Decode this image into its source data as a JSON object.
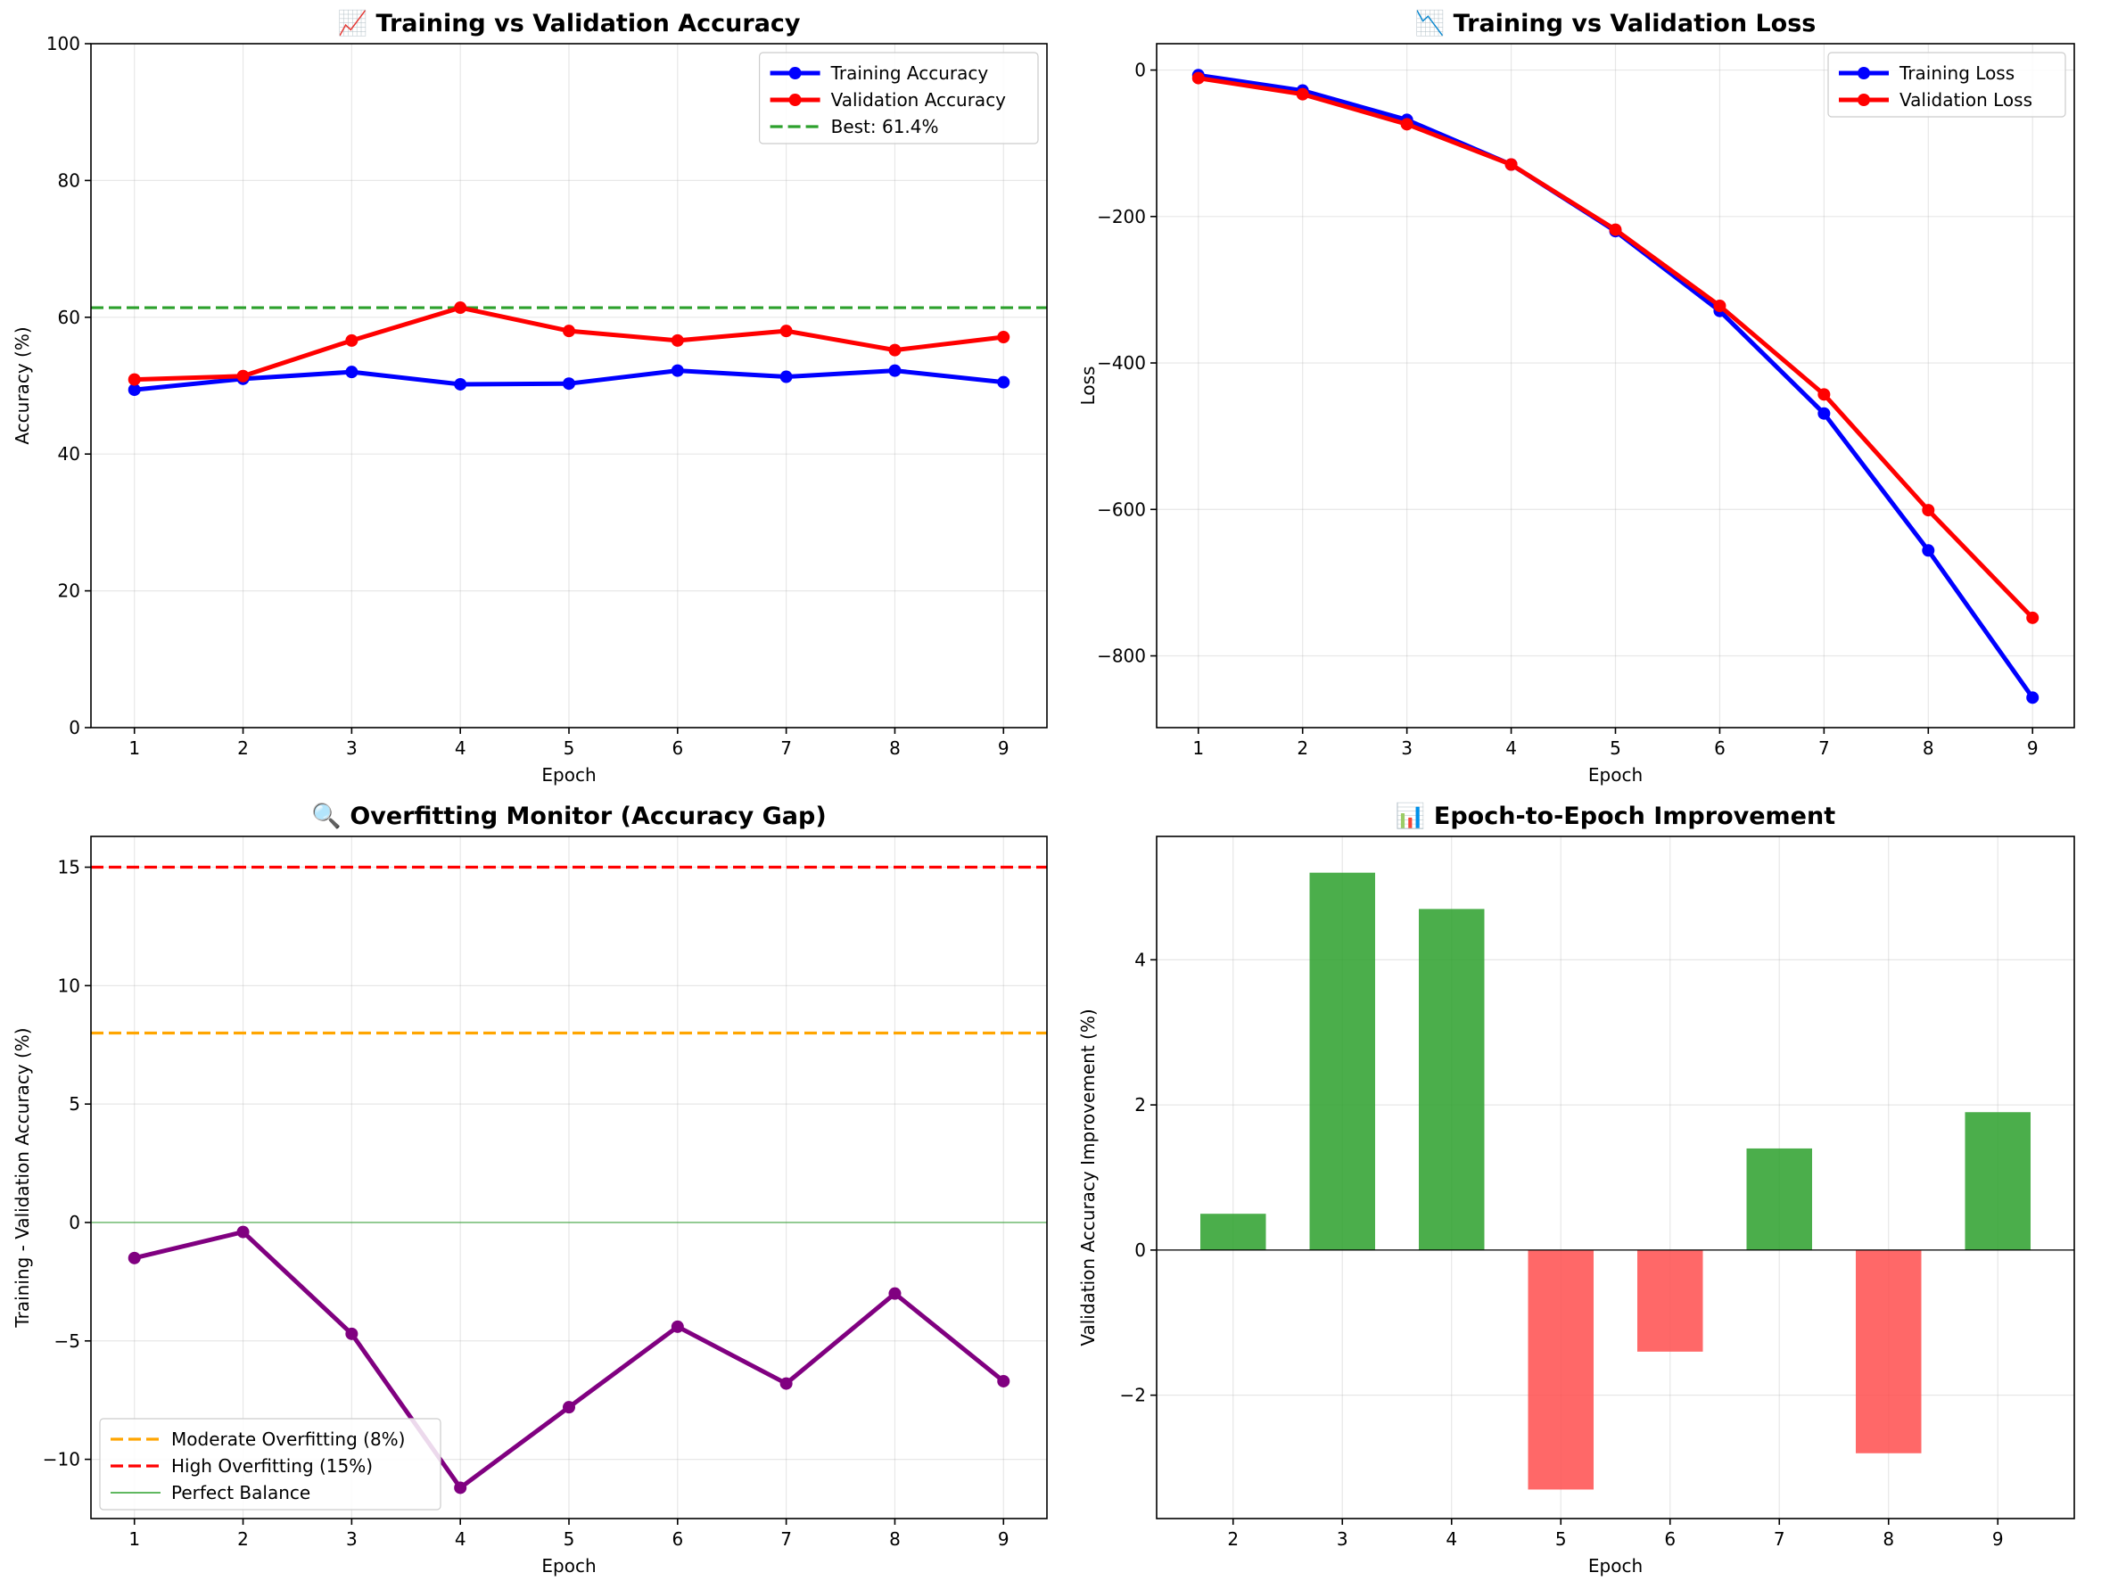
{
  "chart_data": [
    {
      "id": "acc",
      "type": "line",
      "title": "📈 Training vs Validation Accuracy",
      "xlabel": "Epoch",
      "ylabel": "Accuracy (%)",
      "xlim": [
        0.6,
        9.4
      ],
      "ylim": [
        0,
        100
      ],
      "xticks": [
        1,
        2,
        3,
        4,
        5,
        6,
        7,
        8,
        9
      ],
      "yticks": [
        0,
        20,
        40,
        60,
        80,
        100
      ],
      "grid": true,
      "legend_position": "top-right",
      "x": [
        1,
        2,
        3,
        4,
        5,
        6,
        7,
        8,
        9
      ],
      "series": [
        {
          "name": "Training Accuracy",
          "color": "#0000ff",
          "marker": true,
          "values": [
            49.4,
            51.0,
            52.0,
            50.2,
            50.3,
            52.2,
            51.3,
            52.2,
            50.5
          ]
        },
        {
          "name": "Validation Accuracy",
          "color": "#ff0000",
          "marker": true,
          "values": [
            50.9,
            51.4,
            56.6,
            61.4,
            58.0,
            56.6,
            58.0,
            55.2,
            57.1
          ]
        }
      ],
      "hlines": [
        {
          "name": "Best: 61.4%",
          "y": 61.4,
          "color": "#2ca02c",
          "dash": true,
          "in_legend": true
        }
      ]
    },
    {
      "id": "loss",
      "type": "line",
      "title": "📉 Training vs Validation Loss",
      "xlabel": "Epoch",
      "ylabel": "Loss",
      "xlim": [
        0.6,
        9.4
      ],
      "ylim": [
        -898,
        36
      ],
      "xticks": [
        1,
        2,
        3,
        4,
        5,
        6,
        7,
        8,
        9
      ],
      "yticks": [
        -800,
        -600,
        -400,
        -200,
        0
      ],
      "grid": true,
      "legend_position": "top-right",
      "x": [
        1,
        2,
        3,
        4,
        5,
        6,
        7,
        8,
        9
      ],
      "series": [
        {
          "name": "Training Loss",
          "color": "#0000ff",
          "marker": true,
          "values": [
            -7,
            -28,
            -68,
            -129,
            -220,
            -329,
            -469,
            -656,
            -857
          ]
        },
        {
          "name": "Validation Loss",
          "color": "#ff0000",
          "marker": true,
          "values": [
            -11,
            -33,
            -74,
            -129,
            -218,
            -322,
            -443,
            -601,
            -748
          ]
        }
      ],
      "hlines": []
    },
    {
      "id": "gap",
      "type": "line",
      "title": "🔍 Overfitting Monitor (Accuracy Gap)",
      "xlabel": "Epoch",
      "ylabel": "Training - Validation Accuracy (%)",
      "xlim": [
        0.6,
        9.4
      ],
      "ylim": [
        -12.5,
        16.3
      ],
      "xticks": [
        1,
        2,
        3,
        4,
        5,
        6,
        7,
        8,
        9
      ],
      "yticks": [
        -10,
        -5,
        0,
        5,
        10,
        15
      ],
      "grid": true,
      "legend_position": "bottom-left",
      "x": [
        1,
        2,
        3,
        4,
        5,
        6,
        7,
        8,
        9
      ],
      "series": [
        {
          "name": "",
          "color": "#800080",
          "marker": true,
          "values": [
            -1.5,
            -0.4,
            -4.7,
            -11.2,
            -7.8,
            -4.4,
            -6.8,
            -3.0,
            -6.7
          ]
        }
      ],
      "hlines": [
        {
          "name": "Moderate Overfitting (8%)",
          "y": 8,
          "color": "#ffa500",
          "dash": true,
          "in_legend": true
        },
        {
          "name": "High Overfitting (15%)",
          "y": 15,
          "color": "#ff0000",
          "dash": true,
          "in_legend": true
        },
        {
          "name": "Perfect Balance",
          "y": 0,
          "color": "#2ca02c",
          "dash": false,
          "thin": true,
          "in_legend": true
        }
      ]
    },
    {
      "id": "imp",
      "type": "bar",
      "title": "📊 Epoch-to-Epoch Improvement",
      "xlabel": "Epoch",
      "ylabel": "Validation Accuracy Improvement (%)",
      "xlim": [
        1.3,
        9.7
      ],
      "ylim": [
        -3.7,
        5.7
      ],
      "xticks": [
        2,
        3,
        4,
        5,
        6,
        7,
        8,
        9
      ],
      "yticks": [
        -2,
        0,
        2,
        4
      ],
      "grid": true,
      "categories": [
        2,
        3,
        4,
        5,
        6,
        7,
        8,
        9
      ],
      "values": [
        0.5,
        5.2,
        4.7,
        -3.3,
        -1.4,
        1.4,
        -2.8,
        1.9
      ],
      "positive_color": "#2ca02c",
      "negative_color": "#ff4d4d"
    }
  ]
}
